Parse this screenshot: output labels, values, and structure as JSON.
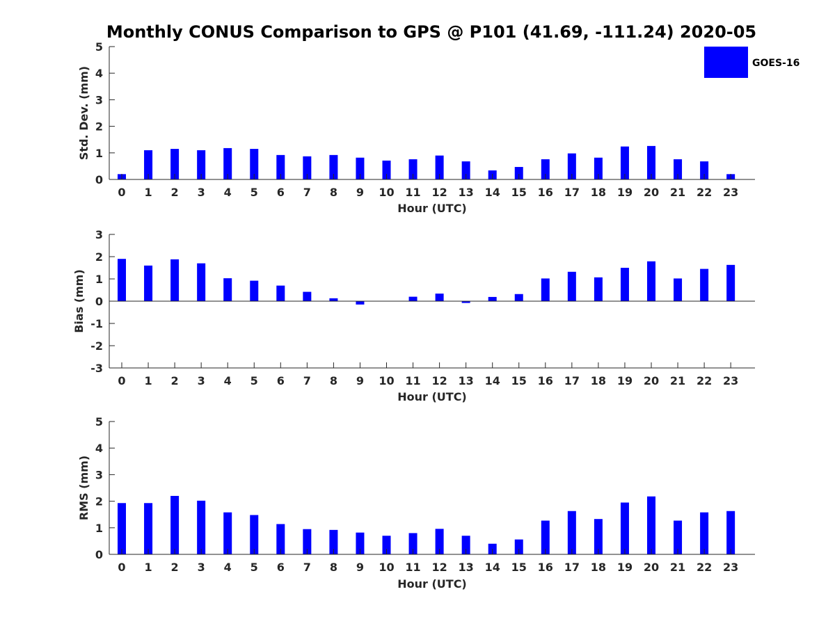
{
  "title": "Monthly CONUS Comparison to GPS @ P101 (41.69, -111.24) 2020-05",
  "colors": {
    "bar": "#0000ff",
    "axis": "#262626",
    "background": "#ffffff"
  },
  "legend": {
    "label": "GOES-16",
    "placement": "top-right"
  },
  "chart_data": [
    {
      "type": "bar",
      "xlabel": "Hour (UTC)",
      "ylabel": "Std. Dev. (mm)",
      "ylim": [
        0,
        5
      ],
      "yticks": [
        0,
        1,
        2,
        3,
        4,
        5
      ],
      "categories": [
        "0",
        "1",
        "2",
        "3",
        "4",
        "5",
        "6",
        "7",
        "8",
        "9",
        "10",
        "11",
        "12",
        "13",
        "14",
        "15",
        "16",
        "17",
        "18",
        "19",
        "20",
        "21",
        "22",
        "23"
      ],
      "series": [
        {
          "name": "GOES-16",
          "values": [
            0.2,
            1.1,
            1.15,
            1.1,
            1.18,
            1.15,
            0.92,
            0.87,
            0.92,
            0.82,
            0.71,
            0.76,
            0.9,
            0.68,
            0.34,
            0.47,
            0.76,
            0.98,
            0.82,
            1.24,
            1.26,
            0.76,
            0.68,
            0.2
          ]
        }
      ],
      "grid": false
    },
    {
      "type": "bar",
      "xlabel": "Hour (UTC)",
      "ylabel": "Bias (mm)",
      "ylim": [
        -3,
        3
      ],
      "yticks": [
        -3,
        -2,
        -1,
        0,
        1,
        2,
        3
      ],
      "categories": [
        "0",
        "1",
        "2",
        "3",
        "4",
        "5",
        "6",
        "7",
        "8",
        "9",
        "10",
        "11",
        "12",
        "13",
        "14",
        "15",
        "16",
        "17",
        "18",
        "19",
        "20",
        "21",
        "22",
        "23"
      ],
      "series": [
        {
          "name": "GOES-16",
          "values": [
            1.9,
            1.6,
            1.88,
            1.7,
            1.03,
            0.92,
            0.7,
            0.42,
            0.13,
            -0.15,
            0.0,
            0.2,
            0.34,
            -0.08,
            0.19,
            0.32,
            1.02,
            1.32,
            1.07,
            1.5,
            1.79,
            1.02,
            1.45,
            1.63
          ]
        }
      ],
      "grid": false
    },
    {
      "type": "bar",
      "xlabel": "Hour (UTC)",
      "ylabel": "RMS (mm)",
      "ylim": [
        0,
        5
      ],
      "yticks": [
        0,
        1,
        2,
        3,
        4,
        5
      ],
      "categories": [
        "0",
        "1",
        "2",
        "3",
        "4",
        "5",
        "6",
        "7",
        "8",
        "9",
        "10",
        "11",
        "12",
        "13",
        "14",
        "15",
        "16",
        "17",
        "18",
        "19",
        "20",
        "21",
        "22",
        "23"
      ],
      "series": [
        {
          "name": "GOES-16",
          "values": [
            1.93,
            1.93,
            2.2,
            2.02,
            1.58,
            1.48,
            1.14,
            0.95,
            0.92,
            0.82,
            0.7,
            0.8,
            0.96,
            0.7,
            0.4,
            0.56,
            1.27,
            1.63,
            1.33,
            1.95,
            2.18,
            1.27,
            1.58,
            1.63
          ]
        }
      ],
      "grid": false
    }
  ]
}
